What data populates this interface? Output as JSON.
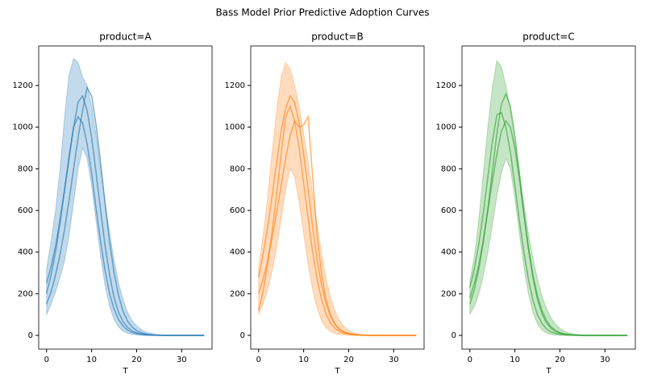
{
  "title": "Bass Model Prior Predictive Adoption Curves",
  "chart_data": [
    {
      "type": "line",
      "title": "product=A",
      "xlabel": "T",
      "x": [
        0,
        1,
        2,
        3,
        4,
        5,
        6,
        7,
        8,
        9,
        10,
        11,
        12,
        13,
        14,
        15,
        16,
        17,
        18,
        19,
        20,
        21,
        22,
        23,
        24,
        25,
        26,
        27,
        28,
        29,
        30,
        31,
        32,
        33,
        34,
        35
      ],
      "xlim": [
        -1.75,
        36.75
      ],
      "xticks": [
        0,
        10,
        20,
        30
      ],
      "ylim": [
        -66,
        1390
      ],
      "yticks": [
        0,
        200,
        400,
        600,
        800,
        1000,
        1200
      ],
      "color": "#1f77b4",
      "band": {
        "lower": [
          100,
          150,
          210,
          280,
          360,
          480,
          640,
          800,
          900,
          850,
          720,
          550,
          380,
          240,
          140,
          75,
          40,
          20,
          10,
          5,
          2,
          1,
          0,
          0,
          0,
          0,
          0,
          0,
          0,
          0,
          0,
          0,
          0,
          0,
          0,
          0
        ],
        "upper": [
          320,
          450,
          600,
          800,
          1050,
          1250,
          1330,
          1310,
          1240,
          1200,
          1100,
          960,
          800,
          640,
          490,
          360,
          250,
          170,
          110,
          70,
          45,
          28,
          17,
          10,
          6,
          3,
          2,
          1,
          1,
          0,
          0,
          0,
          0,
          0,
          0,
          0
        ]
      },
      "series": [
        {
          "color": "#1f77b4",
          "values": [
            250,
            330,
            430,
            560,
            700,
            850,
            1000,
            1120,
            1150,
            1080,
            950,
            780,
            600,
            430,
            290,
            180,
            110,
            65,
            38,
            22,
            12,
            7,
            4,
            2,
            1,
            1,
            0,
            0,
            0,
            0,
            0,
            0,
            0,
            0,
            0,
            0
          ]
        },
        {
          "color": "#1f77b4",
          "values": [
            200,
            290,
            400,
            540,
            700,
            860,
            1000,
            1050,
            1020,
            920,
            780,
            610,
            450,
            310,
            200,
            125,
            75,
            44,
            25,
            14,
            8,
            4,
            2,
            1,
            1,
            0,
            0,
            0,
            0,
            0,
            0,
            0,
            0,
            0,
            0,
            0
          ]
        },
        {
          "color": "#1f77b4",
          "values": [
            150,
            210,
            290,
            390,
            510,
            650,
            800,
            950,
            1080,
            1190,
            1150,
            1010,
            830,
            630,
            450,
            300,
            190,
            115,
            68,
            40,
            23,
            13,
            7,
            4,
            2,
            1,
            1,
            0,
            0,
            0,
            0,
            0,
            0,
            0,
            0,
            0
          ]
        }
      ]
    },
    {
      "type": "line",
      "title": "product=B",
      "xlabel": "T",
      "x": [
        0,
        1,
        2,
        3,
        4,
        5,
        6,
        7,
        8,
        9,
        10,
        11,
        12,
        13,
        14,
        15,
        16,
        17,
        18,
        19,
        20,
        21,
        22,
        23,
        24,
        25,
        26,
        27,
        28,
        29,
        30,
        31,
        32,
        33,
        34,
        35
      ],
      "xlim": [
        -1.75,
        36.75
      ],
      "xticks": [
        0,
        10,
        20,
        30
      ],
      "ylim": [
        -66,
        1390
      ],
      "yticks": [
        0,
        200,
        400,
        600,
        800,
        1000,
        1200
      ],
      "color": "#ff7f0e",
      "band": {
        "lower": [
          100,
          150,
          220,
          310,
          420,
          560,
          700,
          800,
          760,
          640,
          490,
          340,
          220,
          130,
          70,
          36,
          18,
          9,
          4,
          2,
          1,
          0,
          0,
          0,
          0,
          0,
          0,
          0,
          0,
          0,
          0,
          0,
          0,
          0,
          0,
          0
        ],
        "upper": [
          330,
          480,
          660,
          880,
          1080,
          1240,
          1310,
          1280,
          1200,
          1100,
          970,
          830,
          680,
          530,
          390,
          270,
          180,
          115,
          70,
          42,
          25,
          14,
          8,
          4,
          2,
          1,
          1,
          0,
          0,
          0,
          0,
          0,
          0,
          0,
          0,
          0
        ]
      },
      "series": [
        {
          "color": "#ff7f0e",
          "values": [
            120,
            210,
            340,
            500,
            680,
            870,
            1050,
            1100,
            1030,
            900,
            730,
            560,
            400,
            270,
            170,
            100,
            58,
            33,
            18,
            10,
            5,
            3,
            1,
            1,
            0,
            0,
            0,
            0,
            0,
            0,
            0,
            0,
            0,
            0,
            0,
            0
          ]
        },
        {
          "color": "#ff7f0e",
          "values": [
            280,
            390,
            520,
            670,
            830,
            980,
            1090,
            1150,
            1120,
            1020,
            870,
            700,
            520,
            360,
            240,
            150,
            90,
            52,
            30,
            17,
            9,
            5,
            3,
            1,
            1,
            0,
            0,
            0,
            0,
            0,
            0,
            0,
            0,
            0,
            0,
            0
          ]
        },
        {
          "color": "#ff7f0e",
          "values": [
            200,
            270,
            360,
            470,
            590,
            720,
            850,
            960,
            1030,
            1000,
            1010,
            1050,
            760,
            480,
            290,
            170,
            95,
            52,
            28,
            15,
            8,
            4,
            2,
            1,
            1,
            0,
            0,
            0,
            0,
            0,
            0,
            0,
            0,
            0,
            0,
            0
          ]
        }
      ]
    },
    {
      "type": "line",
      "title": "product=C",
      "xlabel": "T",
      "x": [
        0,
        1,
        2,
        3,
        4,
        5,
        6,
        7,
        8,
        9,
        10,
        11,
        12,
        13,
        14,
        15,
        16,
        17,
        18,
        19,
        20,
        21,
        22,
        23,
        24,
        25,
        26,
        27,
        28,
        29,
        30,
        31,
        32,
        33,
        34,
        35
      ],
      "xlim": [
        -1.75,
        36.75
      ],
      "xticks": [
        0,
        10,
        20,
        30
      ],
      "ylim": [
        -66,
        1390
      ],
      "yticks": [
        0,
        200,
        400,
        600,
        800,
        1000,
        1200
      ],
      "color": "#2ca02c",
      "band": {
        "lower": [
          100,
          140,
          200,
          290,
          400,
          530,
          670,
          780,
          850,
          800,
          660,
          490,
          330,
          200,
          110,
          55,
          26,
          12,
          5,
          2,
          1,
          0,
          0,
          0,
          0,
          0,
          0,
          0,
          0,
          0,
          0,
          0,
          0,
          0,
          0,
          0
        ],
        "upper": [
          260,
          380,
          560,
          780,
          1000,
          1190,
          1320,
          1290,
          1200,
          1080,
          930,
          780,
          630,
          490,
          370,
          270,
          190,
          130,
          85,
          55,
          34,
          20,
          12,
          7,
          4,
          2,
          1,
          1,
          0,
          0,
          0,
          0,
          0,
          0,
          0,
          0
        ]
      },
      "series": [
        {
          "color": "#2ca02c",
          "values": [
            230,
            320,
            440,
            590,
            760,
            930,
            1060,
            1070,
            1000,
            880,
            720,
            550,
            400,
            270,
            170,
            100,
            58,
            32,
            17,
            9,
            5,
            2,
            1,
            1,
            0,
            0,
            0,
            0,
            0,
            0,
            0,
            0,
            0,
            0,
            0,
            0
          ]
        },
        {
          "color": "#2ca02c",
          "values": [
            150,
            220,
            320,
            450,
            610,
            790,
            970,
            1110,
            1160,
            1100,
            960,
            780,
            590,
            420,
            280,
            175,
            105,
            60,
            34,
            19,
            10,
            5,
            3,
            1,
            1,
            0,
            0,
            0,
            0,
            0,
            0,
            0,
            0,
            0,
            0,
            0
          ]
        },
        {
          "color": "#2ca02c",
          "values": [
            180,
            250,
            340,
            460,
            600,
            740,
            870,
            980,
            1030,
            1000,
            900,
            750,
            580,
            420,
            290,
            190,
            120,
            72,
            42,
            24,
            13,
            7,
            4,
            2,
            1,
            0,
            0,
            0,
            0,
            0,
            0,
            0,
            0,
            0,
            0,
            0
          ]
        }
      ]
    }
  ]
}
